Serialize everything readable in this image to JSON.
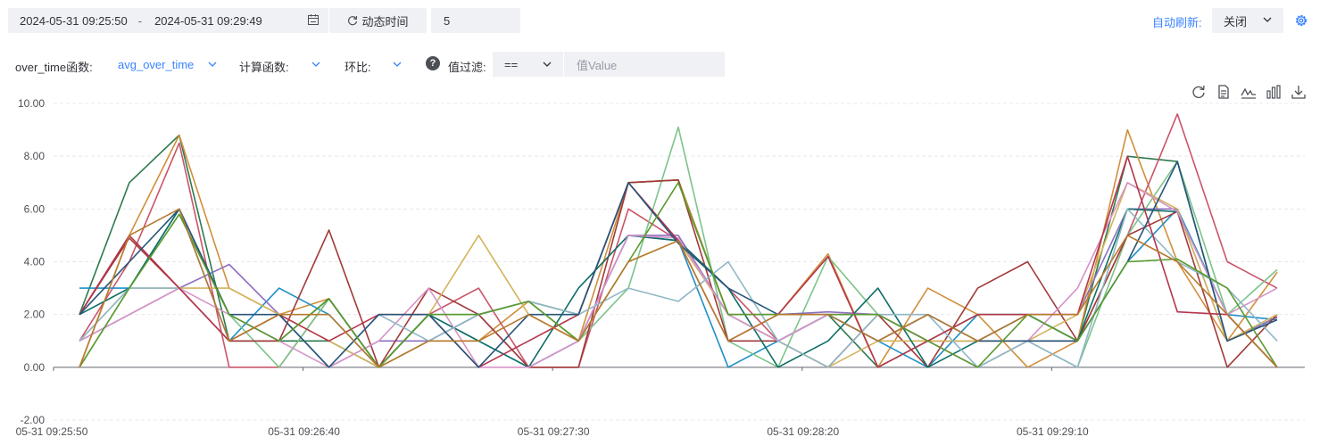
{
  "time_range": {
    "start": "2024-05-31 09:25:50",
    "separator": "-",
    "end": "2024-05-31 09:29:49"
  },
  "dynamic_time_label": "动态时间",
  "step_value": "5",
  "auto_refresh": {
    "label": "自动刷新:",
    "value": "关闭"
  },
  "functions": {
    "over_time_label": "over_time函数:",
    "over_time_value": "avg_over_time",
    "calc_label": "计算函数:",
    "ratio_label": "环比:",
    "filter_label": "值过滤:",
    "filter_op": "==",
    "filter_placeholder": "值Value"
  },
  "icons": {
    "calendar": "calendar-icon",
    "refresh": "refresh-icon",
    "gear": "gear-icon",
    "help": "help-icon"
  },
  "chart_data": {
    "type": "line",
    "ylim": [
      -2,
      10
    ],
    "yticks": [
      "10.00",
      "8.00",
      "6.00",
      "4.00",
      "2.00",
      "0.00",
      "-2.00"
    ],
    "ytick_values": [
      10,
      8,
      6,
      4,
      2,
      0,
      -2
    ],
    "xtick_labels": [
      "05-31 09:25:50",
      "05-31 09:26:40",
      "05-31 09:27:30",
      "05-31 09:28:20",
      "05-31 09:29:10"
    ],
    "x": [
      "09:25:50",
      "09:26:00",
      "09:26:10",
      "09:26:20",
      "09:26:30",
      "09:26:40",
      "09:26:50",
      "09:27:00",
      "09:27:10",
      "09:27:20",
      "09:27:30",
      "09:27:40",
      "09:27:50",
      "09:28:00",
      "09:28:10",
      "09:28:20",
      "09:28:30",
      "09:28:40",
      "09:28:50",
      "09:29:00",
      "09:29:10",
      "09:29:20",
      "09:29:30",
      "09:29:40",
      "09:29:50"
    ],
    "series": [
      {
        "color": "#2f7a4f",
        "values": [
          2,
          7,
          8.8,
          1,
          1,
          1,
          0,
          2,
          2,
          2.5,
          2,
          7,
          7.1,
          2,
          1,
          2,
          0,
          1,
          2,
          2,
          1,
          8,
          7.8,
          1,
          1.9
        ]
      },
      {
        "color": "#d08f3c",
        "values": [
          0,
          5,
          8.8,
          3,
          2,
          2.6,
          0,
          1,
          1,
          2.5,
          1,
          7,
          7.1,
          2,
          2,
          4.3,
          0,
          3,
          2,
          0,
          1,
          9,
          4,
          1,
          3.6
        ]
      },
      {
        "color": "#c9556a",
        "values": [
          1,
          4,
          8.5,
          0,
          0,
          2.6,
          0,
          2,
          3,
          0,
          0,
          6,
          4.8,
          3,
          1,
          2,
          2,
          1,
          1,
          1,
          1,
          5,
          9.6,
          4,
          3
        ]
      },
      {
        "color": "#1e8fc7",
        "values": [
          3,
          3,
          6,
          1,
          3,
          2,
          0,
          2,
          1,
          0,
          1,
          5,
          4.8,
          0,
          1,
          2,
          1,
          0,
          2,
          2,
          1,
          4,
          6,
          2,
          1.8
        ]
      },
      {
        "color": "#7cc48a",
        "values": [
          0,
          3,
          5.8,
          2,
          0,
          2.6,
          0,
          1,
          2,
          2.5,
          1,
          3,
          9.1,
          1,
          0,
          4.2,
          2,
          1,
          0,
          1,
          0,
          5,
          7.8,
          2,
          3.7
        ]
      },
      {
        "color": "#8e6fc0",
        "values": [
          1,
          2,
          3,
          3.9,
          2,
          0,
          1,
          1,
          2,
          0,
          1,
          5,
          5,
          2,
          2,
          2.1,
          2,
          1,
          1,
          2,
          2,
          6,
          6,
          1,
          1.9
        ]
      },
      {
        "color": "#a23a3a",
        "values": [
          2,
          4.9,
          3,
          1,
          1,
          5.2,
          0,
          3,
          2,
          0,
          0,
          7,
          7.1,
          1,
          1,
          0,
          2,
          0,
          3,
          4,
          1,
          5,
          5.9,
          0,
          2
        ]
      },
      {
        "color": "#d3b45b",
        "values": [
          1,
          3,
          3,
          3,
          2,
          1,
          0,
          2,
          5,
          2,
          1,
          4,
          4.8,
          2,
          1,
          0,
          1,
          1,
          1,
          1,
          2,
          7,
          6,
          1,
          2
        ]
      },
      {
        "color": "#0f6e66",
        "values": [
          2,
          3,
          6,
          2,
          1,
          2.6,
          0,
          2,
          1,
          0,
          3,
          5,
          4.8,
          3,
          0,
          1,
          3,
          0,
          1,
          2,
          1,
          6,
          5.9,
          2,
          0
        ]
      },
      {
        "color": "#d694c8",
        "values": [
          1,
          2,
          3,
          2,
          1,
          0,
          1,
          3,
          0,
          0,
          1,
          5,
          4.9,
          2,
          1,
          2,
          2,
          1,
          0,
          1,
          3,
          7,
          5.9,
          2,
          3
        ]
      },
      {
        "color": "#8fb7c7",
        "values": [
          1,
          3,
          3,
          1,
          2,
          0,
          2,
          1,
          2,
          2.5,
          2,
          3,
          2.5,
          4,
          1,
          0,
          2,
          2,
          0,
          1,
          0,
          6,
          4,
          3,
          1
        ]
      },
      {
        "color": "#b5354b",
        "values": [
          2,
          5,
          3,
          1,
          2,
          1,
          2,
          2,
          0,
          1,
          2,
          7,
          4.8,
          1,
          2,
          4.2,
          0,
          1,
          2,
          2,
          2,
          8,
          2.1,
          2,
          0
        ]
      },
      {
        "color": "#27557a",
        "values": [
          2,
          4,
          6,
          2,
          2,
          0,
          2,
          2,
          0,
          2,
          2,
          7,
          4.7,
          3,
          2,
          2,
          1,
          2,
          1,
          1,
          1,
          4,
          7.8,
          1,
          1.8
        ]
      },
      {
        "color": "#5a9a2e",
        "values": [
          0,
          3,
          5.8,
          2,
          1,
          2.6,
          0,
          2,
          2,
          2.5,
          1,
          4,
          7,
          2,
          2,
          2,
          2,
          1,
          0,
          2,
          1,
          4,
          4.1,
          3,
          0
        ]
      },
      {
        "color": "#b77a2e",
        "values": [
          0,
          5,
          6,
          1,
          2,
          2,
          0,
          1,
          1,
          2,
          1,
          4,
          4.8,
          1,
          2,
          2,
          1,
          2,
          1,
          2,
          2,
          5,
          4,
          2,
          0
        ]
      }
    ]
  }
}
